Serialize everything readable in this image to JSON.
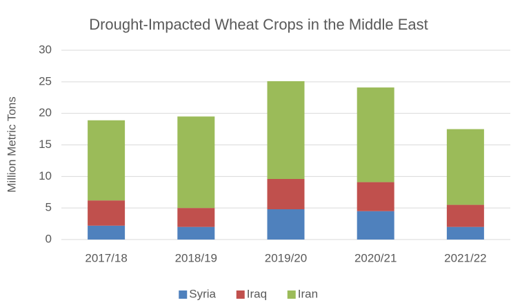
{
  "chart_data": {
    "type": "stacked_bar",
    "title": "Drought-Impacted Wheat Crops in the Middle East",
    "y_label": "Million Metric Tons",
    "categories": [
      "2017/18",
      "2018/19",
      "2019/20",
      "2020/21",
      "2021/22"
    ],
    "series": [
      {
        "name": "Syria",
        "color": "#4f81bd",
        "values": [
          2.2,
          2.0,
          4.8,
          4.5,
          2.0
        ]
      },
      {
        "name": "Iraq",
        "color": "#c0504d",
        "values": [
          4.0,
          3.0,
          4.8,
          4.6,
          3.5
        ]
      },
      {
        "name": "Iran",
        "color": "#9bbb59",
        "values": [
          12.7,
          14.5,
          15.5,
          15.0,
          12.0
        ]
      }
    ],
    "ylim": [
      0,
      30
    ],
    "yticks": [
      0,
      5,
      10,
      15,
      20,
      25,
      30
    ],
    "grid": true,
    "legend": "bottom"
  }
}
